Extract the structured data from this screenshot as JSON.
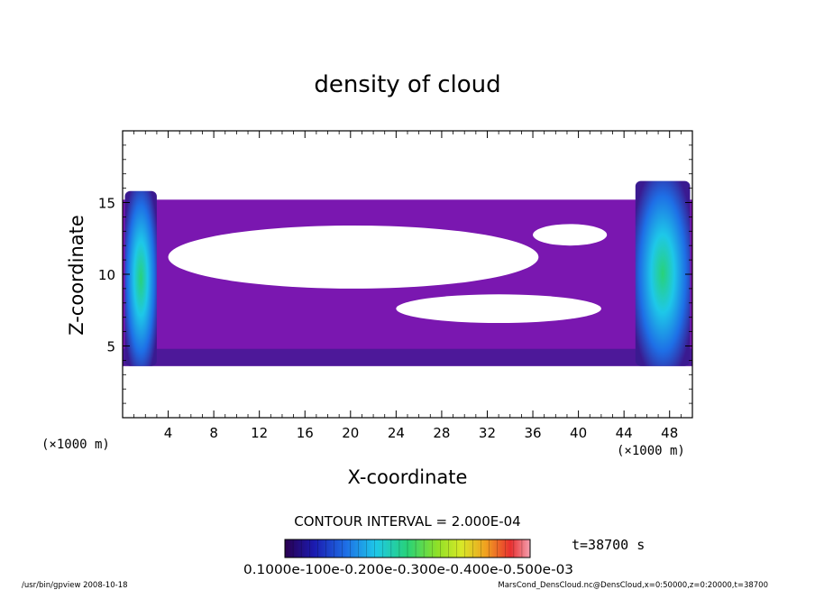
{
  "chart_data": {
    "type": "heatmap",
    "title": "density of cloud",
    "xlabel": "X-coordinate",
    "ylabel": "Z-coordinate",
    "x_unit": "(×1000 m)",
    "z_unit": "(×1000 m)",
    "xlim": [
      0,
      50
    ],
    "ylim": [
      0,
      20
    ],
    "x_ticks": [
      4,
      8,
      12,
      16,
      20,
      24,
      28,
      32,
      36,
      40,
      44,
      48
    ],
    "y_ticks": [
      5,
      10,
      15
    ],
    "cloud_layer": {
      "z_bottom": 3.6,
      "z_top": 15.2
    },
    "clear_regions": [
      {
        "x": [
          4.0,
          36.5
        ],
        "z": [
          9.0,
          13.4
        ]
      },
      {
        "x": [
          24.0,
          42.0
        ],
        "z": [
          6.6,
          8.6
        ]
      },
      {
        "x": [
          36.0,
          42.5
        ],
        "z": [
          12.0,
          13.5
        ]
      }
    ],
    "peak_regions": [
      {
        "x": [
          0.2,
          3.0
        ],
        "z": [
          3.6,
          15.8
        ],
        "level": "high"
      },
      {
        "x": [
          45.0,
          49.8
        ],
        "z": [
          3.6,
          16.5
        ],
        "level": "high"
      }
    ],
    "contour_interval": "CONTOUR INTERVAL = 2.000E-04",
    "colorbar": {
      "labels": [
        "0.1000e-10",
        "0.1000e-3",
        "0.2000e-3",
        "0.3000e-3",
        "0.4000e-3",
        "0.5000e-3"
      ],
      "rendered_text": "0.1000e-100e-0.200e-0.300e-0.400e-0.500e-03",
      "colors": [
        "#2a0050",
        "#1b1bb0",
        "#1e6fe6",
        "#1ec8e8",
        "#28d278",
        "#8ee028",
        "#d8e828",
        "#f0a020",
        "#e83030",
        "#f4a0b0"
      ]
    },
    "time": "t=38700 s"
  },
  "footer": {
    "left": "/usr/bin/gpview   2008-10-18",
    "right": "MarsCond_DensCloud.nc@DensCloud,x=0:50000,z=0:20000,t=38700"
  },
  "colors": {
    "cloud_base": "#7a17b0",
    "cloud_dense": "#3a1a90",
    "peak": "#1ea8e8",
    "frame": "#000000"
  }
}
